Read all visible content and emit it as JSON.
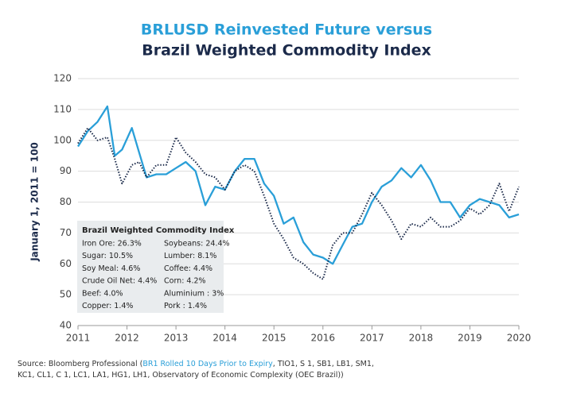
{
  "chart_data": {
    "type": "line",
    "title": "BRLUSD Reinvested Future versus",
    "subtitle": "Brazil Weighted Commodity Index",
    "y_label": "January 1, 2011 = 100",
    "x": [
      2011.0,
      2011.2,
      2011.4,
      2011.6,
      2011.75,
      2011.9,
      2012.1,
      2012.25,
      2012.4,
      2012.6,
      2012.8,
      2013.0,
      2013.2,
      2013.4,
      2013.6,
      2013.8,
      2014.0,
      2014.2,
      2014.4,
      2014.6,
      2014.8,
      2015.0,
      2015.2,
      2015.4,
      2015.6,
      2015.8,
      2016.0,
      2016.2,
      2016.4,
      2016.6,
      2016.8,
      2017.0,
      2017.2,
      2017.4,
      2017.6,
      2017.8,
      2018.0,
      2018.2,
      2018.4,
      2018.6,
      2018.8,
      2019.0,
      2019.2,
      2019.4,
      2019.6,
      2019.8,
      2020.0
    ],
    "series": [
      {
        "color": "#2a9fd8",
        "line_style": "solid",
        "values": [
          98,
          103,
          106,
          111,
          95,
          97,
          104,
          96,
          88,
          89,
          89,
          91,
          93,
          90,
          79,
          85,
          84,
          90,
          94,
          94,
          86,
          82,
          73,
          75,
          67,
          63,
          62,
          60,
          66,
          72,
          73,
          80,
          85,
          87,
          91,
          88,
          92,
          87,
          80,
          80,
          75,
          79,
          81,
          80,
          79,
          75,
          76
        ]
      },
      {
        "color": "#1b2a4a",
        "line_style": "dotted",
        "values": [
          99,
          104,
          100,
          101,
          94,
          86,
          92,
          93,
          88,
          92,
          92,
          101,
          96,
          93,
          89,
          88,
          84,
          90,
          92,
          90,
          82,
          73,
          68,
          62,
          60,
          57,
          55,
          66,
          70,
          70,
          76,
          83,
          79,
          74,
          68,
          73,
          72,
          75,
          72,
          72,
          74,
          78,
          76,
          79,
          86,
          77,
          85
        ]
      }
    ],
    "xlim": [
      2011,
      2020
    ],
    "xticks": [
      2011,
      2012,
      2013,
      2014,
      2015,
      2016,
      2017,
      2018,
      2019,
      2020
    ],
    "ylim": [
      40,
      120
    ],
    "yticks": [
      40,
      50,
      60,
      70,
      80,
      90,
      100,
      110,
      120
    ],
    "grid": true,
    "inset": {
      "title": "Brazil Weighted Commodity Index",
      "items": [
        "Iron Ore: 26.3%",
        "Soybeans: 24.4%",
        "Sugar: 10.5%",
        "Lumber: 8.1%",
        "Soy Meal: 4.6%",
        "Coffee: 4.4%",
        "Crude Oil Net: 4.4%",
        "Corn: 4.2%",
        "Beef: 4.0%",
        "Aluminium : 3%",
        "Copper: 1.4%",
        "Pork : 1.4%"
      ]
    },
    "source": {
      "prefix": "Source: Bloomberg Professional (",
      "link": "BR1 Rolled 10 Days Prior to Expiry",
      "rest": ", TIO1, S 1, SB1, LB1, SM1, KC1, CL1, C 1, LC1, LA1, HG1, LH1, Observatory of Economic Complexity (OEC Brazil))"
    }
  }
}
